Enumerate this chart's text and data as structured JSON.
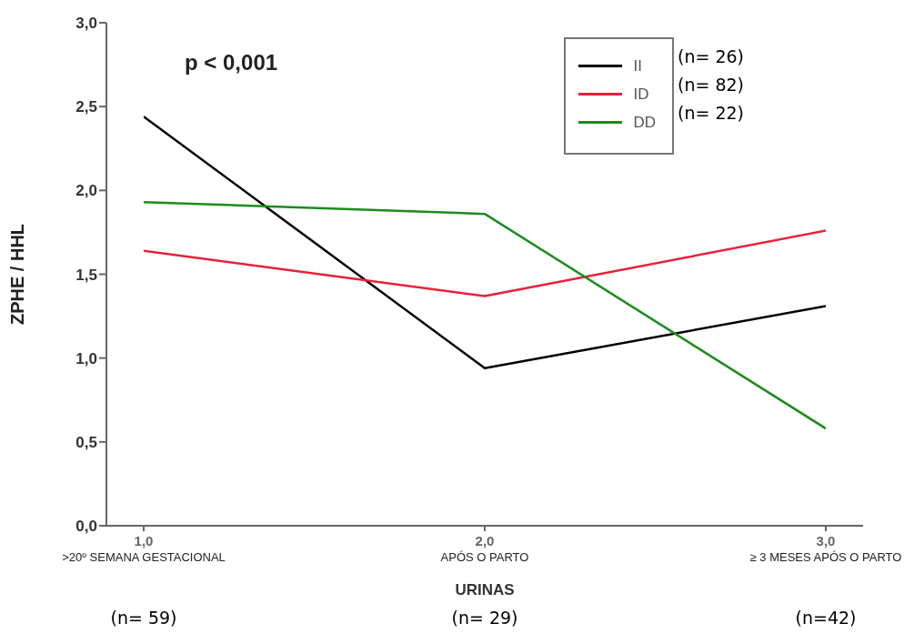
{
  "chart_data": {
    "type": "line",
    "xlabel": "URINAS",
    "ylabel": "ZPHE / HHL",
    "categories": [
      "1,0\n>20º SEMANA GESTACIONAL",
      "2,0\nAPÓS O PARTO",
      "3,0\n≥ 3 MESES APÓS O PARTO"
    ],
    "ylim": [
      0,
      3
    ],
    "yticks": [
      {
        "value": 0,
        "label": "0,0"
      },
      {
        "value": 0.5,
        "label": "0,5"
      },
      {
        "value": 1,
        "label": "1,0"
      },
      {
        "value": 1.5,
        "label": "1,5"
      },
      {
        "value": 2,
        "label": "2,0"
      },
      {
        "value": 2.5,
        "label": "2,5"
      },
      {
        "value": 3,
        "label": "3,0"
      }
    ],
    "series": [
      {
        "name": "II",
        "color": "#000000",
        "values": [
          2.44,
          0.94,
          1.31
        ]
      },
      {
        "name": "ID",
        "color": "#e8203a",
        "values": [
          1.64,
          1.37,
          1.76
        ]
      },
      {
        "name": "DD",
        "color": "#1e8a1e",
        "values": [
          1.93,
          1.86,
          0.58
        ]
      }
    ],
    "annotations": [
      "p < 0,001",
      "(n= 26)",
      "(n= 82)",
      "(n= 22)",
      "(n= 59)",
      "(n= 29)",
      "(n=42)"
    ],
    "legend": "top right",
    "grid": false,
    "marker": "none",
    "line_style": "solid"
  }
}
